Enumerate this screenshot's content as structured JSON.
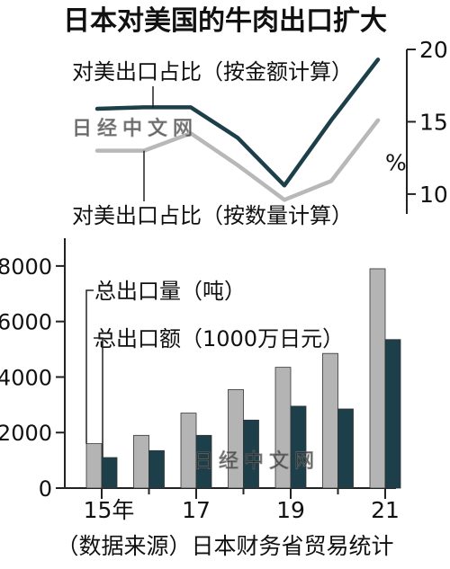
{
  "page": {
    "title": "日本对美国的牛肉出口扩大",
    "source": "（数据来源）日本财务省贸易统计",
    "watermark": "日经中文网"
  },
  "colors": {
    "dark_teal": "#1d3f4a",
    "gray_line": "#b8b8b8",
    "gray_bar": "#b4b4b4",
    "axis": "#222222"
  },
  "chart_data": [
    {
      "type": "line",
      "x": [
        2015,
        2016,
        2017,
        2018,
        2019,
        2020,
        2021
      ],
      "y_unit": "%",
      "ylim": [
        9,
        20
      ],
      "yticks": [
        10,
        15,
        20
      ],
      "series": [
        {
          "name": "对美出口占比（按金额计算）",
          "values": [
            15.9,
            16.0,
            16.0,
            13.9,
            10.6,
            15.1,
            19.3
          ]
        },
        {
          "name": "对美出口占比（按数量计算）",
          "values": [
            13.0,
            13.0,
            14.2,
            12.0,
            9.6,
            10.9,
            15.1
          ]
        }
      ]
    },
    {
      "type": "bar",
      "x": [
        2015,
        2016,
        2017,
        2018,
        2019,
        2020,
        2021
      ],
      "xticks": [
        "15年",
        "17",
        "19",
        "21"
      ],
      "ylim": [
        0,
        9000
      ],
      "yticks": [
        "0",
        "2000",
        "4000",
        "6000",
        "8000"
      ],
      "series": [
        {
          "name": "总出口量（吨）",
          "values": [
            1600,
            1900,
            2700,
            3550,
            4350,
            4850,
            7900
          ]
        },
        {
          "name": "总出口额（1000万日元）",
          "values": [
            1100,
            1350,
            1900,
            2450,
            2950,
            2850,
            5350
          ]
        }
      ]
    }
  ]
}
